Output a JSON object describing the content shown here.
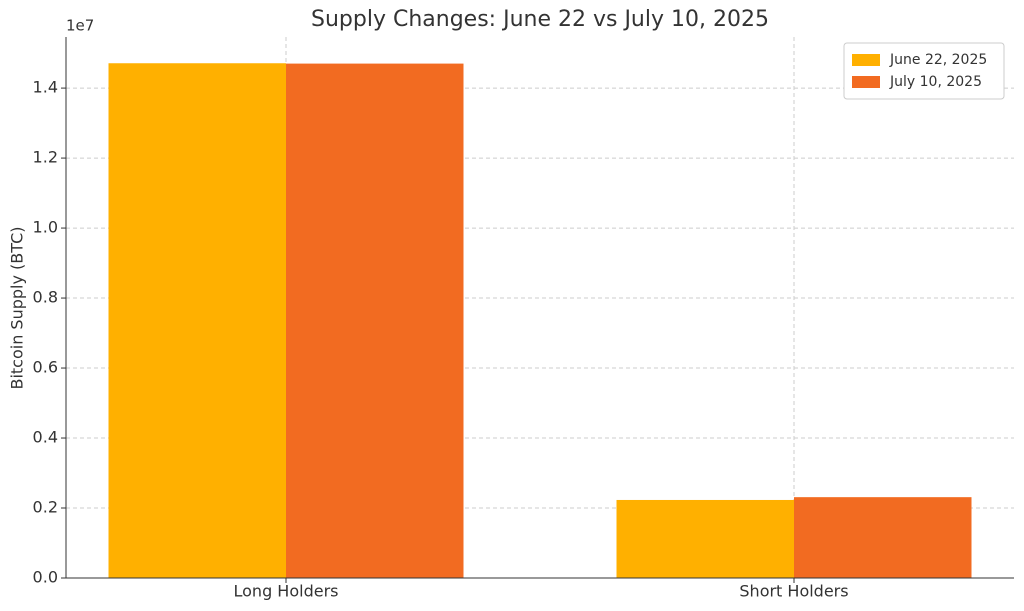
{
  "chart_data": {
    "type": "bar",
    "title": "Supply Changes: June 22 vs July 10, 2025",
    "y_label": "Bitcoin Supply (BTC)",
    "y_offset_label": "1e7",
    "categories": [
      "Long Holders",
      "Short Holders"
    ],
    "series": [
      {
        "name": "June 22, 2025",
        "color": "#ffb000",
        "values": [
          14710000,
          2230000
        ]
      },
      {
        "name": "July 10, 2025",
        "color": "#f26b21",
        "values": [
          14700000,
          2310000
        ]
      }
    ],
    "ylim": [
      0,
      15460000
    ],
    "yticks": [
      {
        "value": 0,
        "label": "0.0"
      },
      {
        "value": 2000000,
        "label": "0.2"
      },
      {
        "value": 4000000,
        "label": "0.4"
      },
      {
        "value": 6000000,
        "label": "0.6"
      },
      {
        "value": 8000000,
        "label": "0.8"
      },
      {
        "value": 10000000,
        "label": "1.0"
      },
      {
        "value": 12000000,
        "label": "1.2"
      },
      {
        "value": 14000000,
        "label": "1.4"
      }
    ],
    "grid": true,
    "legend": "upper right"
  }
}
